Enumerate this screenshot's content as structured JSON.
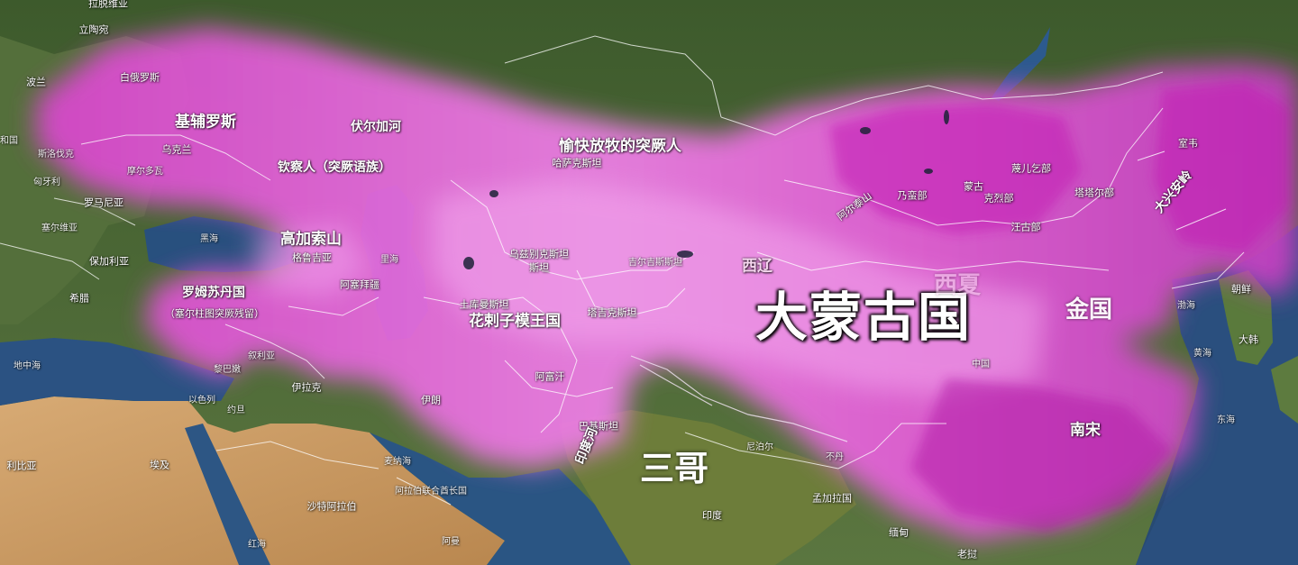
{
  "colors": {
    "ocean": "#274a73",
    "land": "#4f6e3a",
    "desert": "#cfa26a",
    "mongol_empire": "#e14fd6",
    "borders": "#ffffff"
  },
  "labels": {
    "daluomengguo": "大蒙古国",
    "sange": "三哥",
    "jinguo": "金国",
    "nansong": "南宋",
    "xiliao": "西辽",
    "xixia": "西夏",
    "jifuluosi": "基辅罗斯",
    "fuerjiahe": "伏尔加河",
    "yukuai": "愉快放牧的突厥人",
    "qincharen": "钦察人（突厥语族）",
    "gaojiasuoshan": "高加索山",
    "huacizimo": "花剌子模王国",
    "luomusudan": "罗姆苏丹国",
    "saierzhu": "（塞尔柱图突厥残留）",
    "aertai": "阿尔泰山",
    "daxinganling": "大兴安岭",
    "yindu_he": "印度河",
    "lading_weiya": "拉脱维亚",
    "litaowan": "立陶宛",
    "bolan": "波兰",
    "baieluosi": "白俄罗斯",
    "wukelan": "乌克兰",
    "heer_he": "和国",
    "siluofake": "斯洛伐克",
    "xiongyali": "匈牙利",
    "moerduowa": "摩尔多瓦",
    "luomaniya": "罗马尼亚",
    "saierweiya": "塞尔维亚",
    "baojialiya": "保加利亚",
    "xila": "希腊",
    "heihai": "黑海",
    "gelujiya": "格鲁吉亚",
    "asaibaijiang": "阿塞拜疆",
    "lihai": "里海",
    "hasake": "哈萨克斯坦",
    "wuzibieke": "乌兹别克斯坦",
    "tukuman": "土库曼斯坦",
    "jierjisi": "吉尔吉斯斯坦",
    "tajike": "塔吉克斯坦",
    "afuhan": "阿富汗",
    "bajisitan": "巴基斯坦",
    "yilang": "伊朗",
    "yilake": "伊拉克",
    "xuliya": "叙利亚",
    "libanen": "黎巴嫩",
    "yiselie": "以色列",
    "yuedan": "约旦",
    "dizhonghai": "地中海",
    "libiya": "利比亚",
    "aiji": "埃及",
    "shate": "沙特阿拉伯",
    "alabo": "阿拉伯联合酋长国",
    "aman": "阿曼",
    "hongai": "红海",
    "maiyeng": "麦纳海",
    "yindu": "印度",
    "niboer": "尼泊尔",
    "budan": "不丹",
    "mengjialaguo": "孟加拉国",
    "miandian": "缅甸",
    "laowo": "老挝",
    "zhongguo": "中国",
    "menggu": "蒙古",
    "naimanbu": "乃蛮部",
    "mieerqibu": "蔑儿乞部",
    "kelie": "克烈部",
    "tatarbu": "塔塔尔部",
    "wanggubu": "汪古部",
    "shiwei": "室韦",
    "chaoxian": "朝鲜",
    "dahan": "大韩",
    "bohai": "渤海",
    "huanghai": "黄海",
    "donghai": "东海",
    "kusy": "土库"
  }
}
